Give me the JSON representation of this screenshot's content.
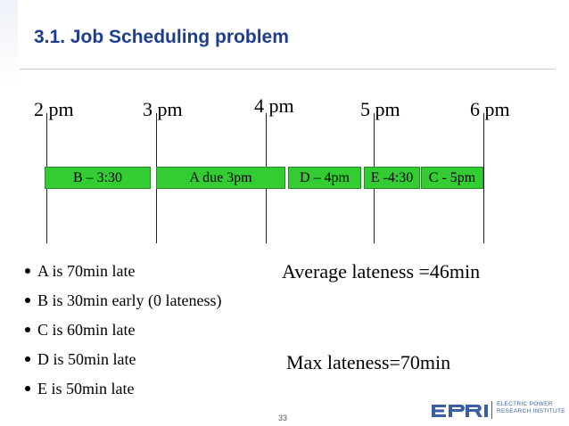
{
  "slide": {
    "title": "3.1. Job Scheduling problem",
    "page_number": "33"
  },
  "timeline": {
    "time_labels": [
      "2 pm",
      "3 pm",
      "4 pm",
      "5 pm",
      "6 pm"
    ],
    "jobs": [
      {
        "label": "B – 3:30"
      },
      {
        "label": "A due 3pm"
      },
      {
        "label": "D – 4pm"
      },
      {
        "label": "E -4:30"
      },
      {
        "label": "C - 5pm"
      }
    ],
    "job_color": "#33cc33"
  },
  "bullets": [
    "A is 70min late",
    "B is 30min early (0 lateness)",
    "C is 60min late",
    "D is 50min late",
    "E is 50min late"
  ],
  "results": {
    "average": "Average lateness =46min",
    "max": "Max lateness=70min"
  },
  "logo": {
    "line1": "ELECTRIC POWER",
    "line2": "RESEARCH INSTITUTE",
    "brand_color": "#3a5fa8"
  }
}
